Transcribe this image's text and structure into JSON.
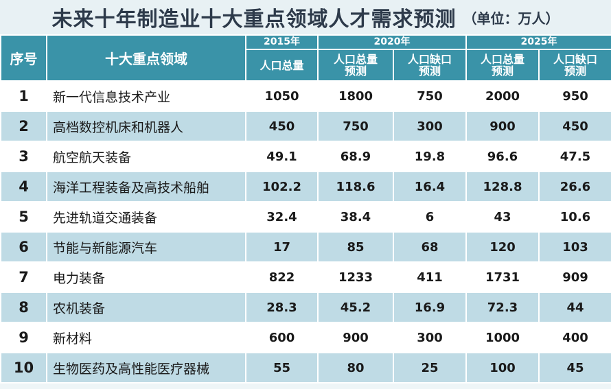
{
  "title": "未来十年制造业十大重点领域人才需求预测",
  "unit": "（单位：万人）",
  "header": {
    "index": "序号",
    "field": "十大重点领域",
    "year_2015": "2015年",
    "year_2020": "2020年",
    "year_2025": "2025年",
    "total_2015": "人口总量",
    "total_forecast_line1": "人口总量",
    "total_forecast_line2": "预测",
    "gap_forecast_line1": "人口缺口",
    "gap_forecast_line2": "预测"
  },
  "rows": [
    {
      "index": "1",
      "field": "新一代信息技术产业",
      "total_2015": "1050",
      "total_2020": "1800",
      "gap_2020": "750",
      "total_2025": "2000",
      "gap_2025": "950"
    },
    {
      "index": "2",
      "field": "高档数控机床和机器人",
      "total_2015": "450",
      "total_2020": "750",
      "gap_2020": "300",
      "total_2025": "900",
      "gap_2025": "450"
    },
    {
      "index": "3",
      "field": "航空航天装备",
      "total_2015": "49.1",
      "total_2020": "68.9",
      "gap_2020": "19.8",
      "total_2025": "96.6",
      "gap_2025": "47.5"
    },
    {
      "index": "4",
      "field": "海洋工程装备及高技术船舶",
      "total_2015": "102.2",
      "total_2020": "118.6",
      "gap_2020": "16.4",
      "total_2025": "128.8",
      "gap_2025": "26.6"
    },
    {
      "index": "5",
      "field": "先进轨道交通装备",
      "total_2015": "32.4",
      "total_2020": "38.4",
      "gap_2020": "6",
      "total_2025": "43",
      "gap_2025": "10.6"
    },
    {
      "index": "6",
      "field": "节能与新能源汽车",
      "total_2015": "17",
      "total_2020": "85",
      "gap_2020": "68",
      "total_2025": "120",
      "gap_2025": "103"
    },
    {
      "index": "7",
      "field": "电力装备",
      "total_2015": "822",
      "total_2020": "1233",
      "gap_2020": "411",
      "total_2025": "1731",
      "gap_2025": "909"
    },
    {
      "index": "8",
      "field": "农机装备",
      "total_2015": "28.3",
      "total_2020": "45.2",
      "gap_2020": "16.9",
      "total_2025": "72.3",
      "gap_2025": "44"
    },
    {
      "index": "9",
      "field": "新材料",
      "total_2015": "600",
      "total_2020": "900",
      "gap_2020": "300",
      "total_2025": "1000",
      "gap_2025": "400"
    },
    {
      "index": "10",
      "field": "生物医药及高性能医疗器械",
      "total_2015": "55",
      "total_2020": "80",
      "gap_2020": "25",
      "total_2025": "100",
      "gap_2025": "45"
    }
  ],
  "colors": {
    "header_bg": "#3a93a8",
    "row_alt_bg": "#bfdbe5",
    "row_bg": "#ffffff",
    "title_text": "#2d3a4a"
  }
}
